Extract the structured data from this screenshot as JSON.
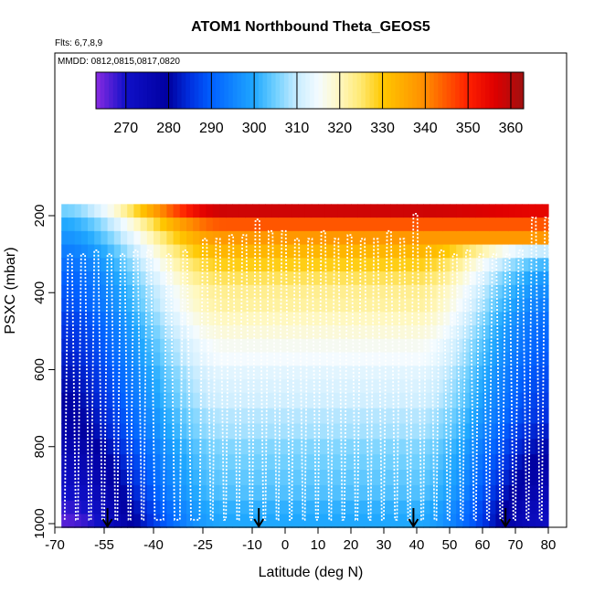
{
  "chart_data": {
    "type": "heatmap",
    "title": "ATOM1 Northbound Theta_GEOS5",
    "notes": [
      "Flts: 6,7,8,9",
      "MMDD: 0812,0815,0817,0820"
    ],
    "xlabel": "Latitude (deg N)",
    "ylabel": "PSXC (mbar)",
    "xlim": [
      -70,
      82
    ],
    "ylim": [
      1000,
      80
    ],
    "x_ticks": [
      -70,
      -55,
      -40,
      -25,
      -10,
      0,
      10,
      20,
      30,
      40,
      50,
      60,
      70,
      80
    ],
    "y_ticks": [
      200,
      400,
      600,
      800,
      1000
    ],
    "colorbar": {
      "min": 263,
      "max": 363,
      "ticks": [
        270,
        280,
        290,
        300,
        310,
        320,
        330,
        340,
        350,
        360
      ],
      "stops": [
        {
          "v": 263,
          "c": "#8a2be2"
        },
        {
          "v": 270,
          "c": "#1010c8"
        },
        {
          "v": 280,
          "c": "#0000a0"
        },
        {
          "v": 285,
          "c": "#0030e0"
        },
        {
          "v": 290,
          "c": "#0060ff"
        },
        {
          "v": 300,
          "c": "#20a8ff"
        },
        {
          "v": 305,
          "c": "#70d0ff"
        },
        {
          "v": 310,
          "c": "#c8ecff"
        },
        {
          "v": 315,
          "c": "#f4fbff"
        },
        {
          "v": 320,
          "c": "#fff8c0"
        },
        {
          "v": 325,
          "c": "#ffe870"
        },
        {
          "v": 330,
          "c": "#ffc800"
        },
        {
          "v": 340,
          "c": "#ff8c00"
        },
        {
          "v": 350,
          "c": "#ff2000"
        },
        {
          "v": 356,
          "c": "#e00000"
        },
        {
          "v": 363,
          "c": "#a01010"
        }
      ]
    },
    "data_xrange": [
      -68,
      80
    ],
    "pressure_levels": [
      170,
      205,
      240,
      275,
      310,
      345,
      380,
      415,
      450,
      485,
      520,
      555,
      590,
      625,
      660,
      700,
      740,
      780,
      820,
      860,
      900,
      940,
      975,
      1010
    ],
    "theta_profile_tropics": [
      358,
      345,
      338,
      333,
      329,
      326,
      323,
      322,
      320,
      318,
      316,
      315,
      313,
      312,
      311,
      309,
      308,
      306,
      305,
      304,
      303,
      301,
      300,
      298
    ],
    "theta_profile_southpole": [
      305,
      300,
      297,
      294,
      292,
      290,
      289,
      288,
      286,
      285,
      284,
      283,
      282,
      281,
      280,
      279,
      278,
      276,
      274,
      272,
      270,
      268,
      266,
      265
    ],
    "theta_profile_northpole": [
      355,
      345,
      338,
      310,
      302,
      298,
      296,
      294,
      292,
      291,
      290,
      289,
      288,
      287,
      286,
      285,
      283,
      281,
      279,
      277,
      275,
      273,
      272,
      270
    ],
    "flight_profiles_lat": [
      -67,
      -63,
      -59,
      -55,
      -51,
      -47,
      -43,
      -37,
      -32,
      -26,
      -22,
      -18,
      -14,
      -10,
      -6,
      -2,
      2,
      6,
      10,
      14,
      18,
      22,
      26,
      30,
      34,
      38,
      42,
      46,
      50,
      54,
      58,
      62,
      66,
      70,
      74,
      78
    ],
    "flight_profiles_top": [
      300,
      300,
      290,
      300,
      300,
      290,
      290,
      300,
      290,
      260,
      260,
      250,
      250,
      210,
      240,
      240,
      260,
      260,
      240,
      260,
      250,
      260,
      260,
      240,
      260,
      195,
      280,
      290,
      300,
      290,
      300,
      300,
      300,
      290,
      205,
      205
    ],
    "arrows_lat": [
      -54,
      -8,
      39,
      67
    ]
  }
}
